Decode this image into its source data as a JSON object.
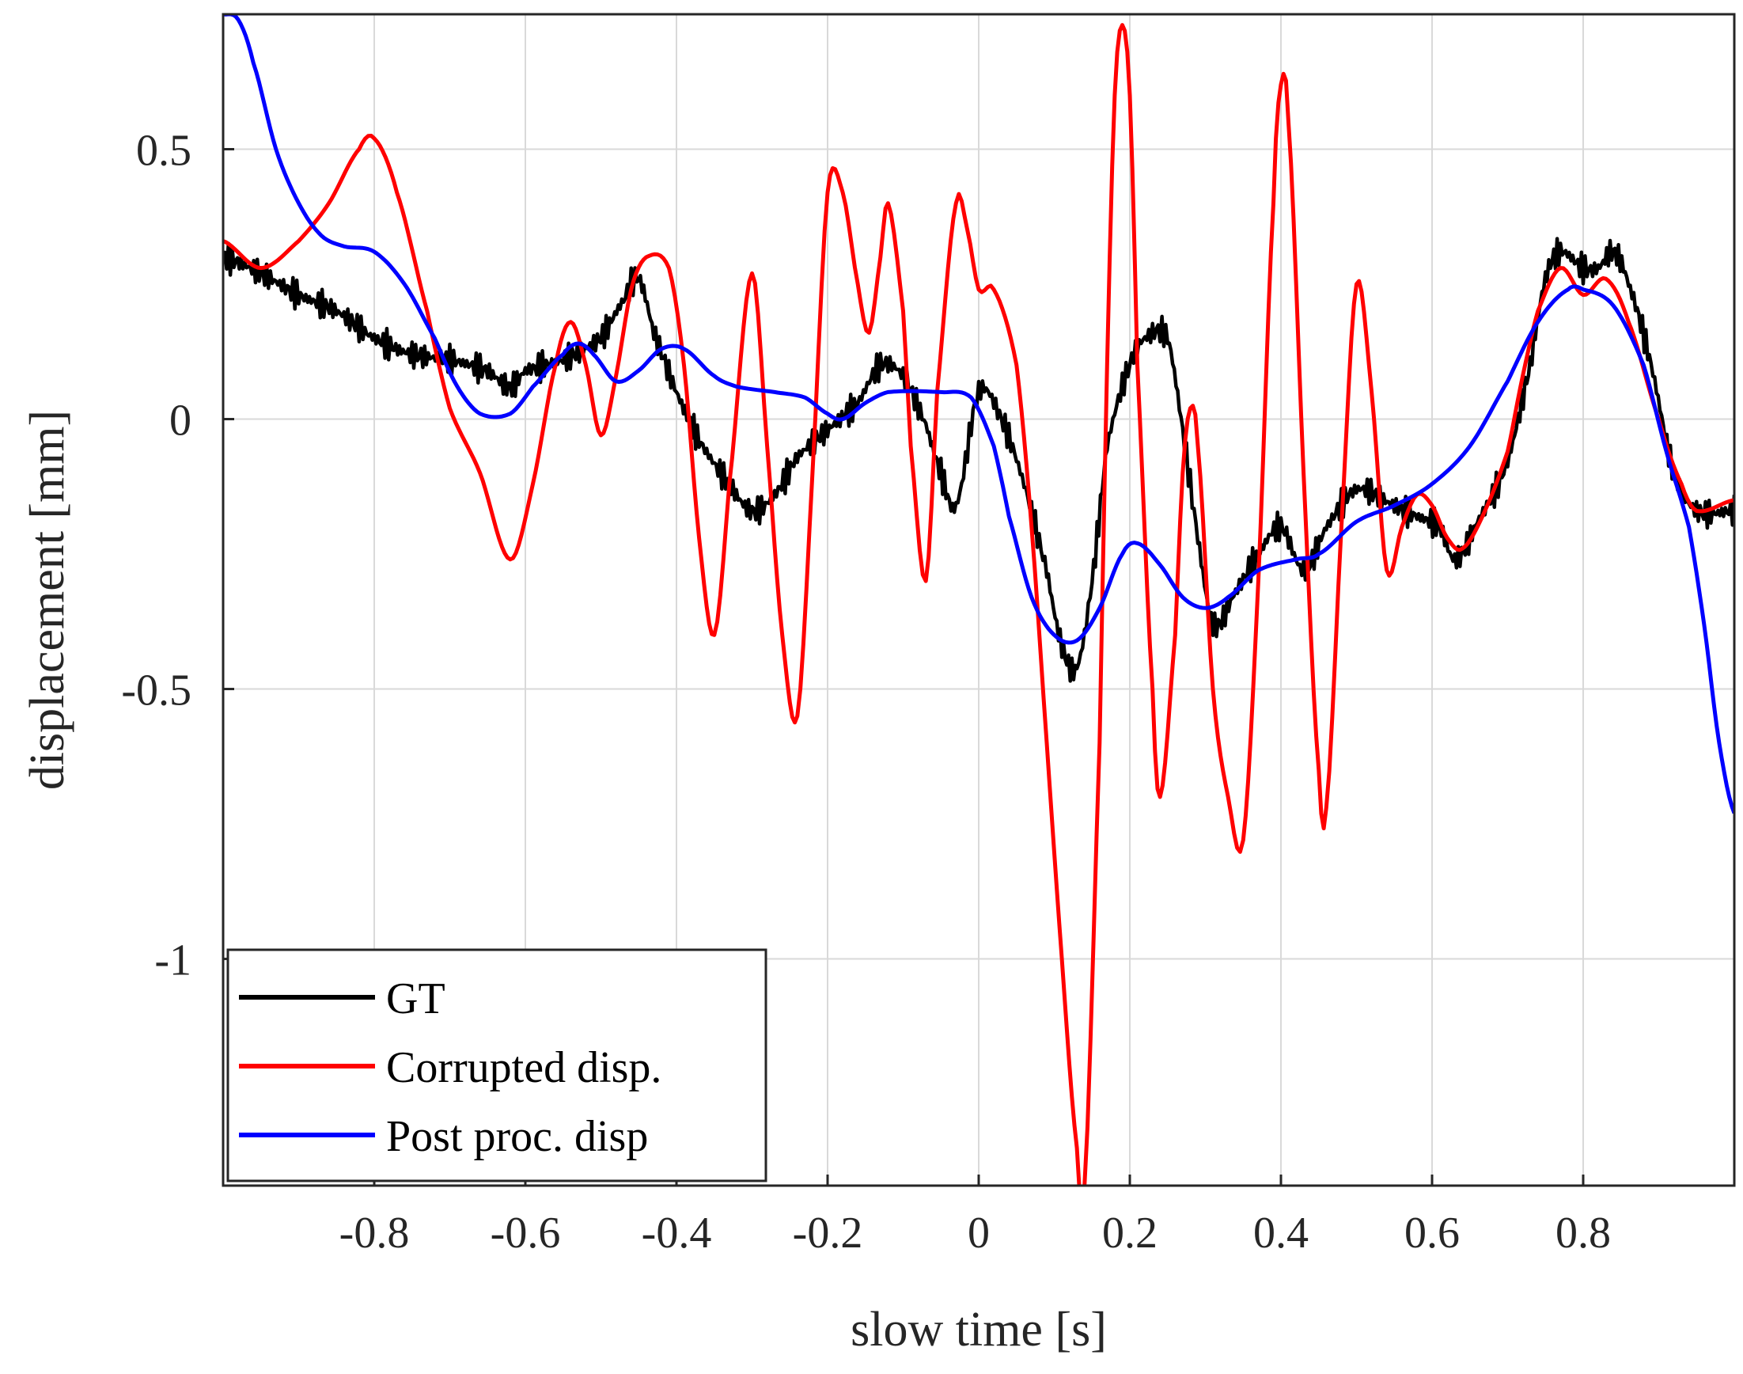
{
  "chart_data": {
    "type": "line",
    "xlabel": "slow time [s]",
    "ylabel": "displacement [mm]",
    "xlim": [
      -1.0,
      1.0
    ],
    "ylim": [
      -1.42,
      0.75
    ],
    "grid": true,
    "xticks": [
      -0.8,
      -0.6,
      -0.4,
      -0.2,
      0,
      0.2,
      0.4,
      0.6,
      0.8
    ],
    "xtick_labels": [
      "-0.8",
      "-0.6",
      "-0.4",
      "-0.2",
      "0",
      "0.2",
      "0.4",
      "0.6",
      "0.8"
    ],
    "yticks": [
      0.5,
      0,
      -0.5,
      -1
    ],
    "ytick_labels": [
      "0.5",
      "0",
      "-0.5",
      "-1"
    ],
    "legend_position": "bottom-left",
    "series": [
      {
        "name": "GT",
        "color": "#000000",
        "noise_amplitude": 0.03,
        "points": [
          [
            -1.0,
            0.3
          ],
          [
            -0.95,
            0.27
          ],
          [
            -0.9,
            0.23
          ],
          [
            -0.85,
            0.2
          ],
          [
            -0.8,
            0.15
          ],
          [
            -0.75,
            0.12
          ],
          [
            -0.7,
            0.11
          ],
          [
            -0.65,
            0.09
          ],
          [
            -0.62,
            0.06
          ],
          [
            -0.6,
            0.09
          ],
          [
            -0.55,
            0.11
          ],
          [
            -0.5,
            0.15
          ],
          [
            -0.47,
            0.22
          ],
          [
            -0.45,
            0.26
          ],
          [
            -0.43,
            0.16
          ],
          [
            -0.4,
            0.05
          ],
          [
            -0.37,
            -0.04
          ],
          [
            -0.33,
            -0.12
          ],
          [
            -0.3,
            -0.17
          ],
          [
            -0.27,
            -0.14
          ],
          [
            -0.24,
            -0.07
          ],
          [
            -0.2,
            -0.02
          ],
          [
            -0.16,
            0.03
          ],
          [
            -0.13,
            0.1
          ],
          [
            -0.1,
            0.08
          ],
          [
            -0.07,
            -0.01
          ],
          [
            -0.05,
            -0.1
          ],
          [
            -0.03,
            -0.16
          ],
          [
            0.0,
            0.05
          ],
          [
            0.03,
            0.0
          ],
          [
            0.06,
            -0.12
          ],
          [
            0.09,
            -0.28
          ],
          [
            0.11,
            -0.42
          ],
          [
            0.13,
            -0.46
          ],
          [
            0.15,
            -0.3
          ],
          [
            0.17,
            -0.05
          ],
          [
            0.2,
            0.1
          ],
          [
            0.22,
            0.15
          ],
          [
            0.25,
            0.15
          ],
          [
            0.27,
            -0.02
          ],
          [
            0.29,
            -0.22
          ],
          [
            0.31,
            -0.38
          ],
          [
            0.34,
            -0.32
          ],
          [
            0.37,
            -0.25
          ],
          [
            0.4,
            -0.2
          ],
          [
            0.43,
            -0.28
          ],
          [
            0.46,
            -0.2
          ],
          [
            0.5,
            -0.13
          ],
          [
            0.55,
            -0.16
          ],
          [
            0.58,
            -0.18
          ],
          [
            0.61,
            -0.2
          ],
          [
            0.63,
            -0.26
          ],
          [
            0.66,
            -0.19
          ],
          [
            0.7,
            -0.08
          ],
          [
            0.73,
            0.1
          ],
          [
            0.75,
            0.26
          ],
          [
            0.77,
            0.31
          ],
          [
            0.8,
            0.28
          ],
          [
            0.82,
            0.28
          ],
          [
            0.84,
            0.31
          ],
          [
            0.86,
            0.25
          ],
          [
            0.89,
            0.1
          ],
          [
            0.92,
            -0.1
          ],
          [
            0.95,
            -0.17
          ],
          [
            1.0,
            -0.17
          ]
        ]
      },
      {
        "name": "Corrupted disp.",
        "color": "#ff0000",
        "noise_amplitude": 0,
        "points": [
          [
            -1.0,
            0.33
          ],
          [
            -0.95,
            0.28
          ],
          [
            -0.9,
            0.33
          ],
          [
            -0.86,
            0.4
          ],
          [
            -0.82,
            0.5
          ],
          [
            -0.8,
            0.52
          ],
          [
            -0.77,
            0.42
          ],
          [
            -0.73,
            0.2
          ],
          [
            -0.7,
            0.02
          ],
          [
            -0.66,
            -0.1
          ],
          [
            -0.62,
            -0.26
          ],
          [
            -0.59,
            -0.12
          ],
          [
            -0.56,
            0.1
          ],
          [
            -0.54,
            0.18
          ],
          [
            -0.52,
            0.1
          ],
          [
            -0.5,
            -0.03
          ],
          [
            -0.48,
            0.08
          ],
          [
            -0.46,
            0.24
          ],
          [
            -0.44,
            0.3
          ],
          [
            -0.41,
            0.28
          ],
          [
            -0.39,
            0.1
          ],
          [
            -0.37,
            -0.22
          ],
          [
            -0.35,
            -0.4
          ],
          [
            -0.33,
            -0.12
          ],
          [
            -0.3,
            0.27
          ],
          [
            -0.28,
            -0.05
          ],
          [
            -0.26,
            -0.4
          ],
          [
            -0.24,
            -0.55
          ],
          [
            -0.22,
            -0.1
          ],
          [
            -0.2,
            0.42
          ],
          [
            -0.18,
            0.42
          ],
          [
            -0.16,
            0.25
          ],
          [
            -0.145,
            0.16
          ],
          [
            -0.13,
            0.3
          ],
          [
            -0.12,
            0.4
          ],
          [
            -0.1,
            0.2
          ],
          [
            -0.09,
            -0.05
          ],
          [
            -0.07,
            -0.3
          ],
          [
            -0.055,
            0.05
          ],
          [
            -0.03,
            0.4
          ],
          [
            -0.015,
            0.35
          ],
          [
            0.0,
            0.24
          ],
          [
            0.02,
            0.24
          ],
          [
            0.05,
            0.1
          ],
          [
            0.07,
            -0.2
          ],
          [
            0.09,
            -0.6
          ],
          [
            0.11,
            -1.0
          ],
          [
            0.13,
            -1.35
          ],
          [
            0.14,
            -1.42
          ],
          [
            0.16,
            -0.6
          ],
          [
            0.17,
            0.1
          ],
          [
            0.18,
            0.6
          ],
          [
            0.19,
            0.73
          ],
          [
            0.2,
            0.6
          ],
          [
            0.21,
            0.1
          ],
          [
            0.23,
            -0.5
          ],
          [
            0.24,
            -0.7
          ],
          [
            0.26,
            -0.4
          ],
          [
            0.27,
            -0.1
          ],
          [
            0.28,
            0.02
          ],
          [
            0.29,
            -0.05
          ],
          [
            0.31,
            -0.5
          ],
          [
            0.33,
            -0.7
          ],
          [
            0.35,
            -0.78
          ],
          [
            0.37,
            -0.3
          ],
          [
            0.39,
            0.4
          ],
          [
            0.4,
            0.62
          ],
          [
            0.41,
            0.55
          ],
          [
            0.43,
            -0.1
          ],
          [
            0.45,
            -0.65
          ],
          [
            0.46,
            -0.72
          ],
          [
            0.48,
            -0.2
          ],
          [
            0.5,
            0.25
          ],
          [
            0.52,
            0.05
          ],
          [
            0.54,
            -0.28
          ],
          [
            0.56,
            -0.2
          ],
          [
            0.58,
            -0.14
          ],
          [
            0.6,
            -0.16
          ],
          [
            0.62,
            -0.22
          ],
          [
            0.64,
            -0.24
          ],
          [
            0.67,
            -0.17
          ],
          [
            0.7,
            -0.06
          ],
          [
            0.72,
            0.08
          ],
          [
            0.74,
            0.2
          ],
          [
            0.77,
            0.28
          ],
          [
            0.8,
            0.23
          ],
          [
            0.83,
            0.26
          ],
          [
            0.86,
            0.18
          ],
          [
            0.9,
            0.0
          ],
          [
            0.93,
            -0.12
          ],
          [
            0.95,
            -0.17
          ],
          [
            1.0,
            -0.15
          ]
        ]
      },
      {
        "name": "Post proc. disp",
        "color": "#0000ff",
        "noise_amplitude": 0,
        "points": [
          [
            -1.0,
            0.75
          ],
          [
            -0.98,
            0.74
          ],
          [
            -0.96,
            0.66
          ],
          [
            -0.93,
            0.5
          ],
          [
            -0.9,
            0.4
          ],
          [
            -0.87,
            0.34
          ],
          [
            -0.84,
            0.32
          ],
          [
            -0.8,
            0.31
          ],
          [
            -0.76,
            0.25
          ],
          [
            -0.72,
            0.15
          ],
          [
            -0.69,
            0.06
          ],
          [
            -0.66,
            0.01
          ],
          [
            -0.62,
            0.01
          ],
          [
            -0.59,
            0.06
          ],
          [
            -0.55,
            0.12
          ],
          [
            -0.53,
            0.14
          ],
          [
            -0.51,
            0.12
          ],
          [
            -0.48,
            0.07
          ],
          [
            -0.45,
            0.09
          ],
          [
            -0.42,
            0.13
          ],
          [
            -0.39,
            0.13
          ],
          [
            -0.35,
            0.08
          ],
          [
            -0.32,
            0.06
          ],
          [
            -0.27,
            0.05
          ],
          [
            -0.23,
            0.04
          ],
          [
            -0.2,
            0.01
          ],
          [
            -0.18,
            0.0
          ],
          [
            -0.15,
            0.03
          ],
          [
            -0.12,
            0.05
          ],
          [
            -0.05,
            0.05
          ],
          [
            -0.01,
            0.04
          ],
          [
            0.02,
            -0.05
          ],
          [
            0.04,
            -0.18
          ],
          [
            0.07,
            -0.33
          ],
          [
            0.1,
            -0.4
          ],
          [
            0.13,
            -0.41
          ],
          [
            0.16,
            -0.35
          ],
          [
            0.19,
            -0.25
          ],
          [
            0.21,
            -0.23
          ],
          [
            0.24,
            -0.27
          ],
          [
            0.27,
            -0.33
          ],
          [
            0.3,
            -0.35
          ],
          [
            0.33,
            -0.33
          ],
          [
            0.37,
            -0.28
          ],
          [
            0.42,
            -0.26
          ],
          [
            0.45,
            -0.25
          ],
          [
            0.5,
            -0.19
          ],
          [
            0.55,
            -0.16
          ],
          [
            0.6,
            -0.12
          ],
          [
            0.65,
            -0.05
          ],
          [
            0.7,
            0.07
          ],
          [
            0.74,
            0.18
          ],
          [
            0.78,
            0.24
          ],
          [
            0.8,
            0.24
          ],
          [
            0.84,
            0.21
          ],
          [
            0.88,
            0.1
          ],
          [
            0.91,
            -0.06
          ],
          [
            0.94,
            -0.2
          ],
          [
            0.96,
            -0.38
          ],
          [
            0.98,
            -0.6
          ],
          [
            1.0,
            -0.73
          ]
        ]
      }
    ]
  }
}
